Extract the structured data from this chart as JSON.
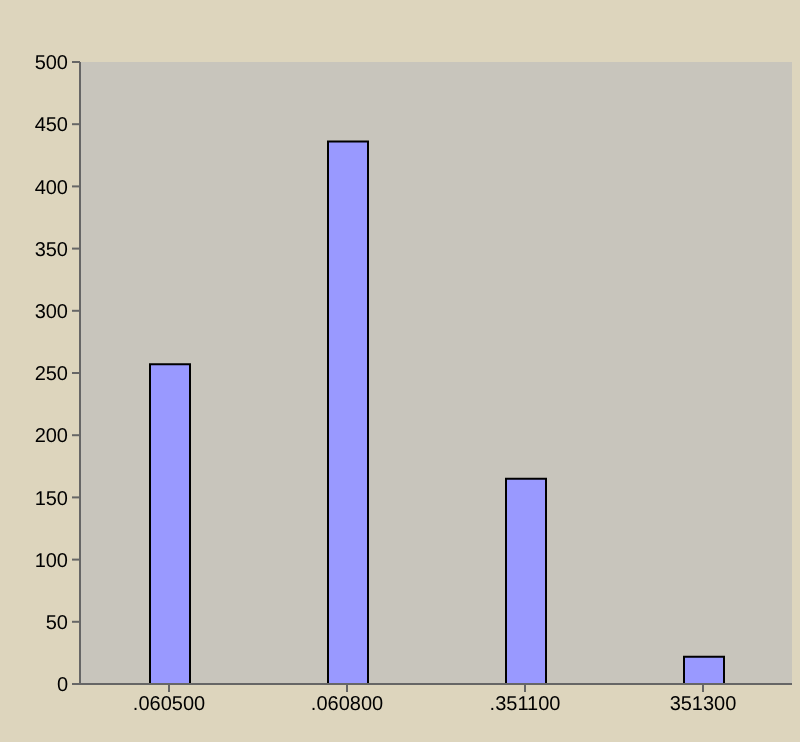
{
  "chart_data": {
    "type": "bar",
    "categories": [
      ".060500",
      ".060800",
      ".351100",
      "351300"
    ],
    "values": [
      257,
      436,
      165,
      22
    ],
    "color": "#9999ff",
    "ylim": [
      0,
      500
    ],
    "yticks": [
      0,
      50,
      100,
      150,
      200,
      250,
      300,
      350,
      400,
      450,
      500
    ],
    "grid": false,
    "legend": false
  }
}
